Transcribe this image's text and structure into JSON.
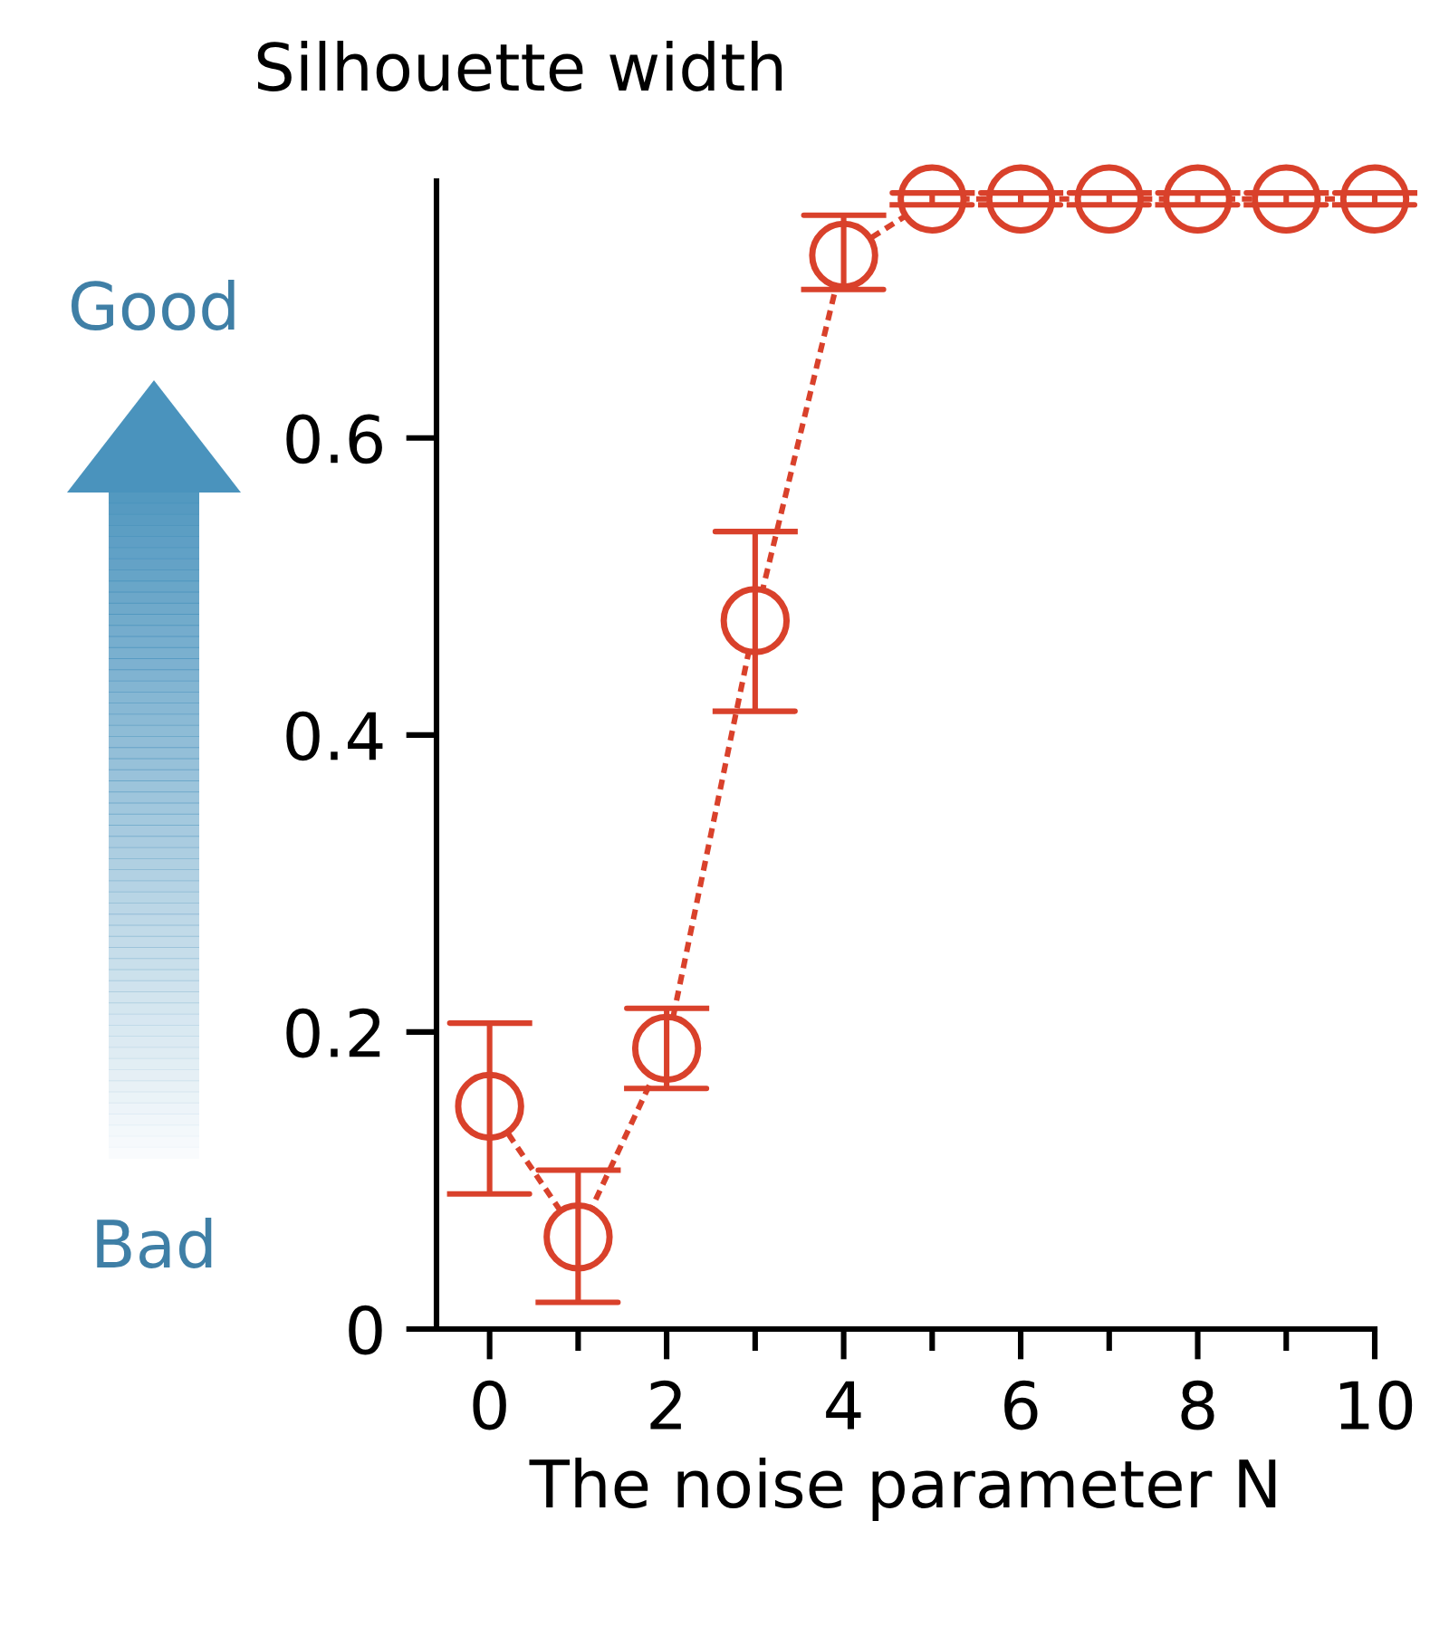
{
  "chart_data": {
    "type": "line",
    "title": "Silhouette width",
    "xlabel": "The noise parameter N",
    "x": [
      0,
      1,
      2,
      3,
      4,
      5,
      6,
      7,
      8,
      9,
      10
    ],
    "series": [
      {
        "color": "#d9412b",
        "values": [
          0.15,
          0.062,
          0.189,
          0.477,
          0.723,
          0.761,
          0.761,
          0.761,
          0.761,
          0.761,
          0.761
        ],
        "errors": [
          [
            0.091,
            0.206
          ],
          [
            0.018,
            0.107
          ],
          [
            0.162,
            0.216
          ],
          [
            0.416,
            0.537
          ],
          [
            0.7,
            0.75
          ],
          [
            0.757,
            0.765
          ],
          [
            0.757,
            0.765
          ],
          [
            0.757,
            0.765
          ],
          [
            0.757,
            0.765
          ],
          [
            0.757,
            0.765
          ],
          [
            0.757,
            0.765
          ]
        ]
      }
    ],
    "marker": "circle",
    "line_style": "dashed",
    "grid": false,
    "xlim": [
      -0.6,
      10
    ],
    "ylim": [
      0,
      0.773
    ],
    "xticks": [
      0,
      {
        "value": 1,
        "label": null
      },
      2,
      {
        "value": 3,
        "label": null
      },
      4,
      {
        "value": 5,
        "label": null
      },
      6,
      {
        "value": 7,
        "label": null
      },
      8,
      {
        "value": 9,
        "label": null
      },
      10
    ],
    "yticks": [
      0,
      0.2,
      0.4,
      0.6
    ],
    "annotations": [
      "Good",
      "Bad"
    ]
  }
}
